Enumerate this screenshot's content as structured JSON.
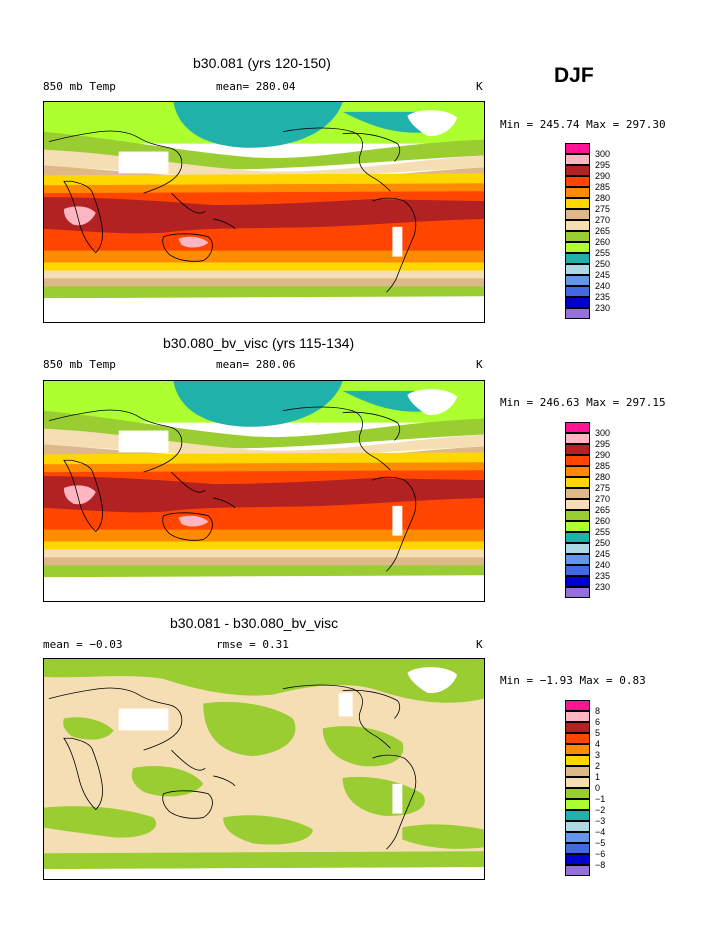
{
  "season": "DJF",
  "panels": [
    {
      "title": "b30.081 (yrs 120-150)",
      "left_label": "850 mb Temp",
      "center_label": "mean= 280.04",
      "unit": "K",
      "minmax": "Min = 245.74 Max = 297.30",
      "scale": "abs"
    },
    {
      "title": "b30.080_bv_visc (yrs 115-134)",
      "left_label": "850 mb Temp",
      "center_label": "mean= 280.06",
      "unit": "K",
      "minmax": "Min = 246.63 Max = 297.15",
      "scale": "abs"
    },
    {
      "title": "b30.081 - b30.080_bv_visc",
      "left_label": "mean =   −0.03",
      "center_label": "rmse =    0.31",
      "unit": "K",
      "minmax": "Min =  −1.93 Max =    0.83",
      "scale": "diff"
    }
  ],
  "legends": {
    "abs": {
      "labels": [
        "300",
        "295",
        "290",
        "285",
        "280",
        "275",
        "270",
        "265",
        "260",
        "255",
        "250",
        "245",
        "240",
        "235",
        "230"
      ],
      "colors": [
        "#ff1493",
        "#ffb6c1",
        "#b22222",
        "#ff4500",
        "#ff8c00",
        "#ffd700",
        "#deb887",
        "#f5deb3",
        "#9acd32",
        "#adff2f",
        "#20b2aa",
        "#add8e6",
        "#6495ed",
        "#4169e1",
        "#0000cd",
        "#9370db"
      ]
    },
    "diff": {
      "labels": [
        "8",
        "6",
        "5",
        "4",
        "3",
        "2",
        "1",
        "0",
        "−1",
        "−2",
        "−3",
        "−4",
        "−5",
        "−6",
        "−8"
      ],
      "colors": [
        "#ff1493",
        "#ffb6c1",
        "#b22222",
        "#ff4500",
        "#ff8c00",
        "#ffd700",
        "#deb887",
        "#f5deb3",
        "#9acd32",
        "#adff2f",
        "#20b2aa",
        "#add8e6",
        "#6495ed",
        "#4169e1",
        "#0000cd",
        "#9370db"
      ]
    }
  }
}
